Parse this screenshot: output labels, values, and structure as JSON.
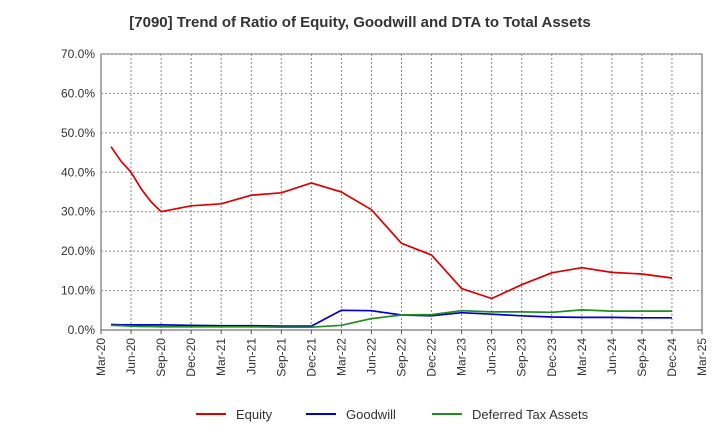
{
  "chart_data": {
    "type": "line",
    "title": "[7090]  Trend of Ratio of Equity, Goodwill and DTA to Total Assets",
    "xlabel": "",
    "ylabel": "",
    "x_ticks": [
      "Mar-20",
      "Jun-20",
      "Sep-20",
      "Dec-20",
      "Mar-21",
      "Jun-21",
      "Sep-21",
      "Dec-21",
      "Mar-22",
      "Jun-22",
      "Sep-22",
      "Dec-22",
      "Mar-23",
      "Jun-23",
      "Sep-23",
      "Dec-23",
      "Mar-24",
      "Jun-24",
      "Sep-24",
      "Dec-24",
      "Mar-25"
    ],
    "y_ticks": [
      "0.0%",
      "10.0%",
      "20.0%",
      "30.0%",
      "40.0%",
      "50.0%",
      "60.0%",
      "70.0%"
    ],
    "ylim": [
      0,
      70
    ],
    "grid": true,
    "legend_position": "bottom",
    "x": [
      "2020-04",
      "2020-05",
      "2020-06",
      "2020-07",
      "2020-08",
      "2020-09",
      "2020-12",
      "2021-03",
      "2021-06",
      "2021-09",
      "2021-12",
      "2022-03",
      "2022-06",
      "2022-09",
      "2022-12",
      "2023-03",
      "2023-06",
      "2023-09",
      "2023-12",
      "2024-03",
      "2024-06",
      "2024-09",
      "2024-12"
    ],
    "series": [
      {
        "name": "Equity",
        "color": "#dd0000",
        "values": [
          46.5,
          42.8,
          40.0,
          35.8,
          32.5,
          30.0,
          31.5,
          32.0,
          34.2,
          34.8,
          37.3,
          35.0,
          30.5,
          22.0,
          19.0,
          10.5,
          8.0,
          11.5,
          14.5,
          15.8,
          14.6,
          14.2,
          13.2
        ]
      },
      {
        "name": "Goodwill",
        "color": "#0000cc",
        "values": [
          1.4,
          1.3,
          1.3,
          1.3,
          1.3,
          1.3,
          1.2,
          1.1,
          1.1,
          1.0,
          1.0,
          5.0,
          4.9,
          3.8,
          3.6,
          4.4,
          4.0,
          3.6,
          3.3,
          3.2,
          3.2,
          3.1,
          3.1
        ]
      },
      {
        "name": "Deferred Tax Assets",
        "color": "#228b22",
        "values": [
          1.2,
          1.1,
          1.0,
          0.9,
          0.9,
          0.8,
          0.8,
          0.8,
          0.8,
          0.7,
          0.7,
          1.2,
          2.9,
          3.8,
          3.9,
          4.9,
          4.6,
          4.6,
          4.5,
          5.1,
          4.8,
          4.8,
          4.8
        ]
      }
    ]
  }
}
